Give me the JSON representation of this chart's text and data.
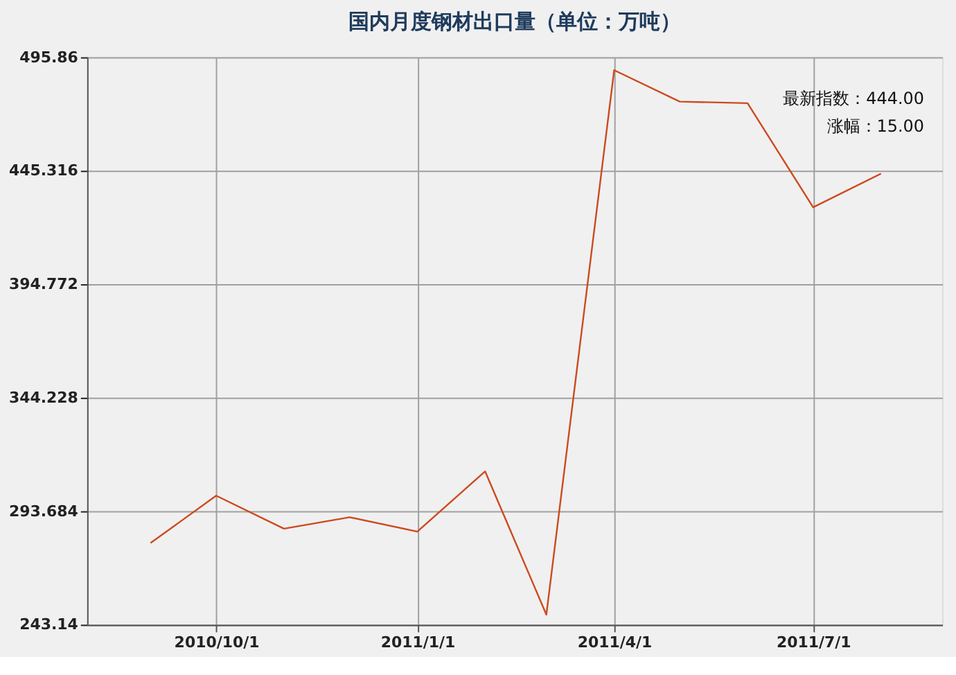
{
  "chart_data": {
    "type": "line",
    "title": "国内月度钢材出口量（单位：万吨）",
    "x": [
      "2010-09-01",
      "2010-10-01",
      "2010-11-01",
      "2010-12-01",
      "2011-01-01",
      "2011-02-01",
      "2011-03-01",
      "2011-04-01",
      "2011-05-01",
      "2011-06-01",
      "2011-07-01",
      "2011-08-01"
    ],
    "series": [
      {
        "color": "#cc4a1e",
        "values": [
          279.5,
          300.6,
          285.9,
          291.0,
          284.6,
          311.4,
          247.6,
          490.1,
          476.1,
          475.4,
          429,
          444
        ]
      }
    ],
    "xlim": [
      "2010-08-03",
      "2011-08-29"
    ],
    "xticks": [
      {
        "value": "2010-10-01",
        "label": "2010/10/1"
      },
      {
        "value": "2011-01-01",
        "label": "2011/1/1"
      },
      {
        "value": "2011-04-01",
        "label": "2011/4/1"
      },
      {
        "value": "2011-07-01",
        "label": "2011/7/1"
      }
    ],
    "ylim": [
      243.14,
      495.86
    ],
    "yticks": [
      243.14,
      293.684,
      344.228,
      394.772,
      445.316,
      495.86
    ],
    "grid": true,
    "marker": "none",
    "line_style": "solid",
    "legend": false,
    "annotations": [
      "最新指数：444.00",
      "涨幅：15.00"
    ]
  }
}
